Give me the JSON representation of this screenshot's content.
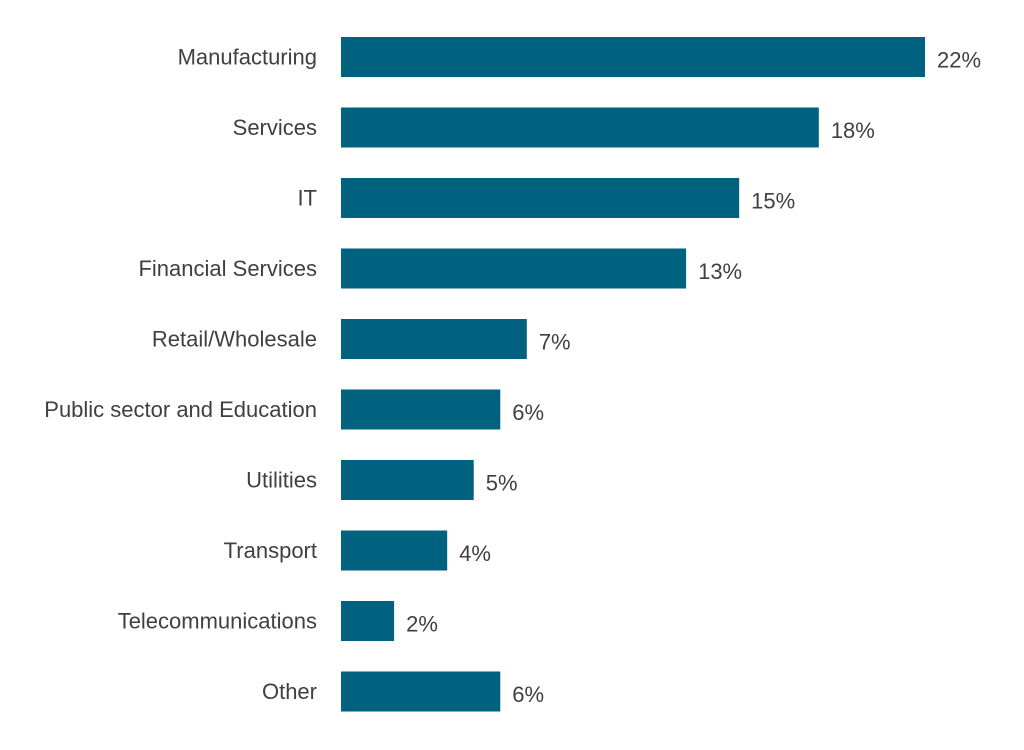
{
  "chart_data": {
    "type": "bar",
    "orientation": "horizontal",
    "categories": [
      "Manufacturing",
      "Services",
      "IT",
      "Financial Services",
      "Retail/Wholesale",
      "Public sector and Education",
      "Utilities",
      "Transport",
      "Telecommunications",
      "Other"
    ],
    "values": [
      22,
      18,
      15,
      13,
      7,
      6,
      5,
      4,
      2,
      6
    ],
    "value_labels": [
      "22%",
      "18%",
      "15%",
      "13%",
      "7%",
      "6%",
      "5%",
      "4%",
      "2%",
      "6%"
    ],
    "unit": "%",
    "title": "",
    "xlabel": "",
    "ylabel": "",
    "xlim": [
      0,
      22
    ],
    "grid": false,
    "legend": "none",
    "bar_color": "#00627F"
  }
}
